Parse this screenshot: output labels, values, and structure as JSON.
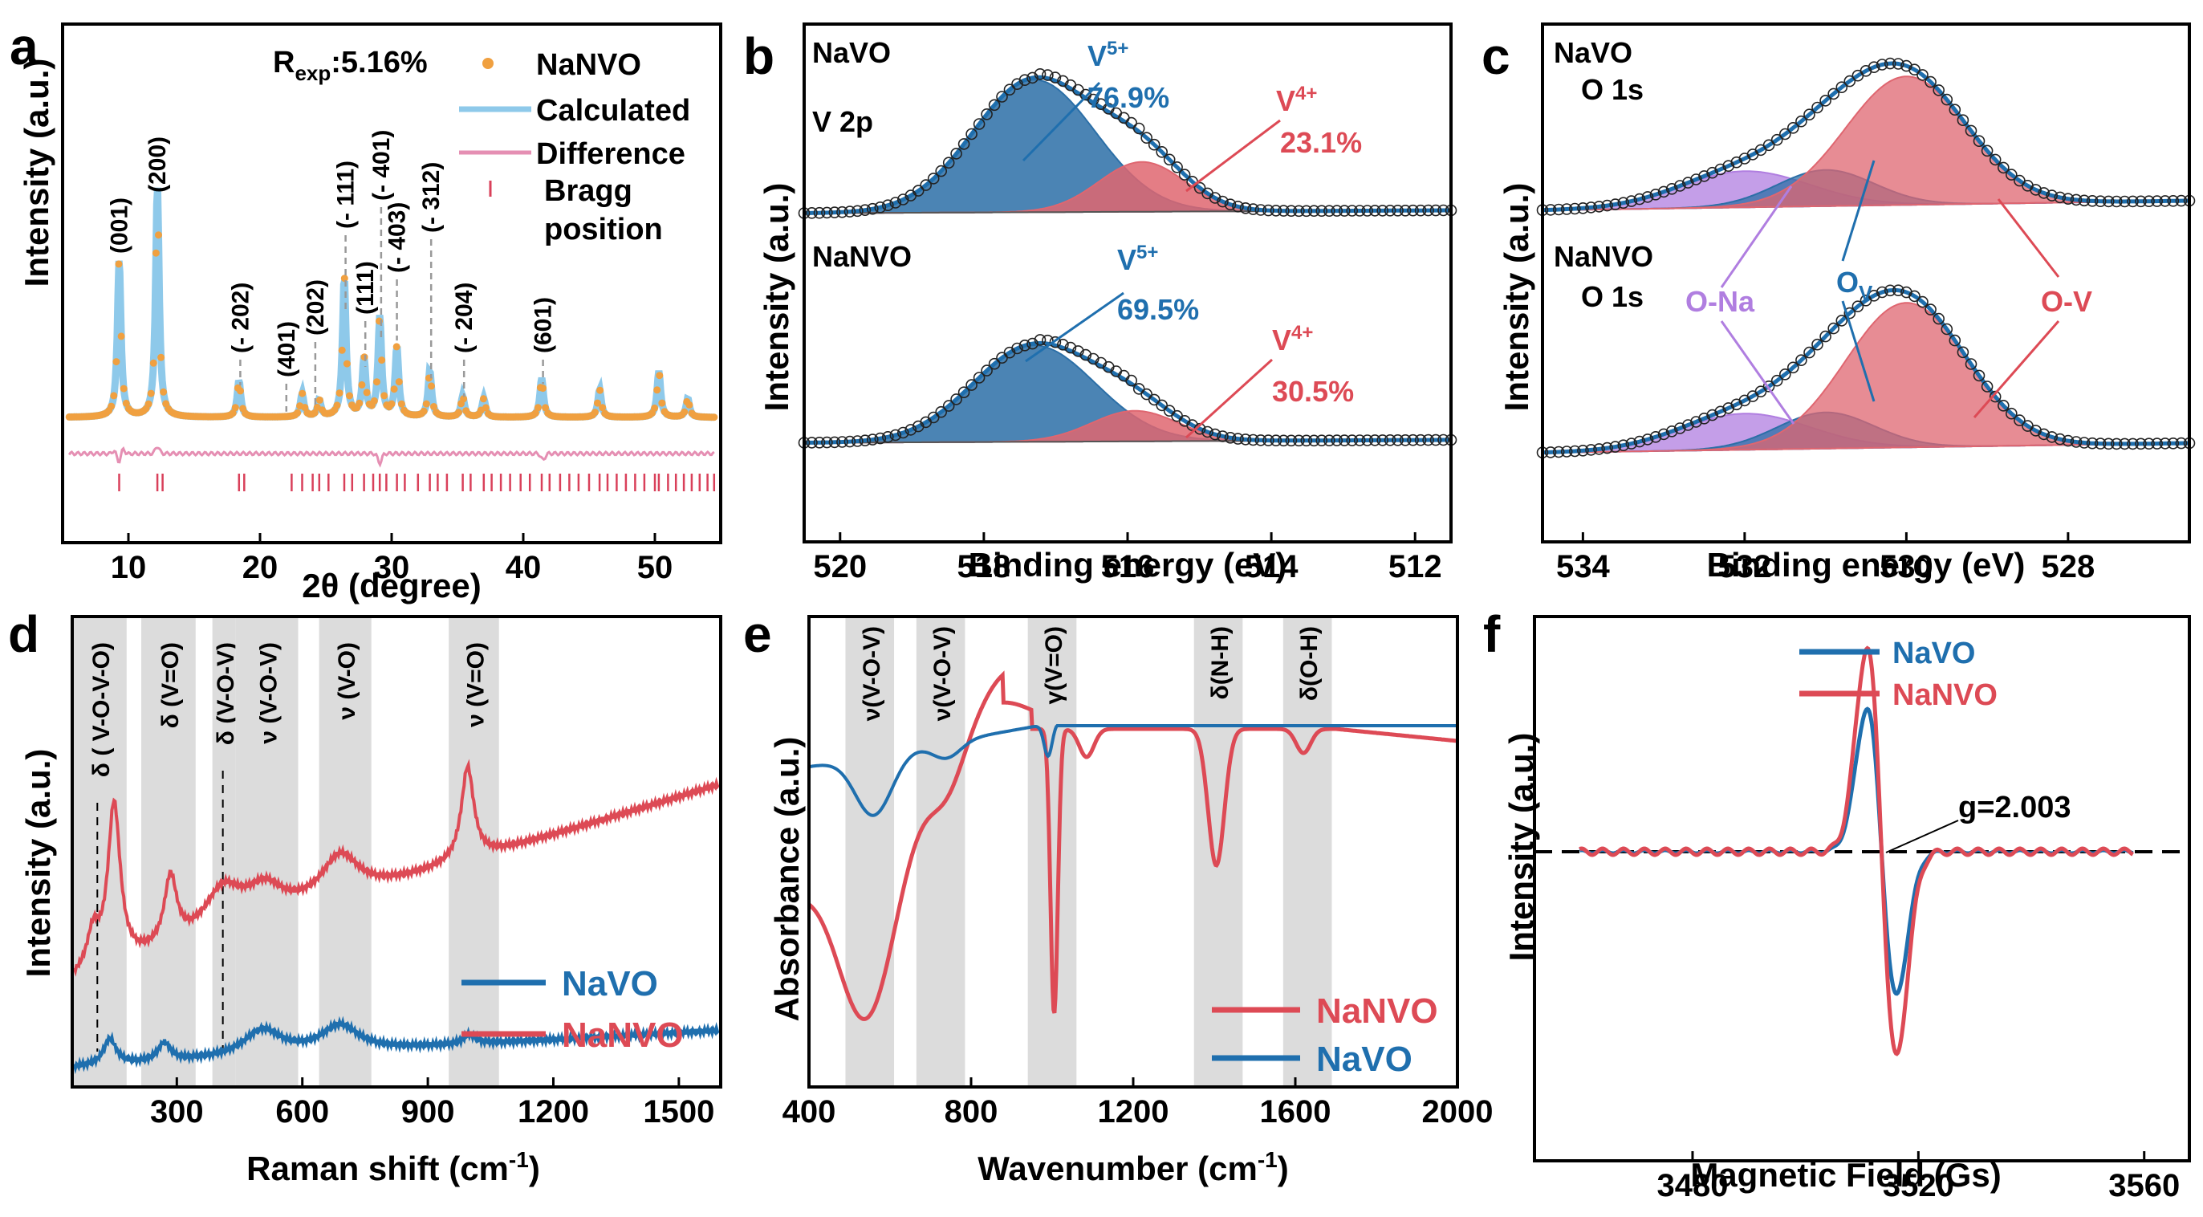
{
  "colors": {
    "orange": "#f0a040",
    "calc_blue": "#8ec9ea",
    "pink": "#e58fb3",
    "bragg": "#d9405a",
    "blue": "#1f6fae",
    "red": "#dd4a55",
    "purple": "#b07ee0",
    "fill_blue": "#2c6fa7",
    "fill_red": "#df6670",
    "shade": "#dcdcdc"
  },
  "chart_data": [
    {
      "panel": "a",
      "type": "line",
      "title": "",
      "xlabel": "2θ (degree)",
      "ylabel": "Intensity (a.u.)",
      "xlim": [
        5,
        55
      ],
      "xticks": [
        10,
        20,
        30,
        40,
        50
      ],
      "r_exp": "R",
      "r_exp_sub": "exp",
      "r_exp_value": ":5.16%",
      "legend": [
        "NaNVO",
        "Calculated",
        "Difference",
        "Bragg",
        "position"
      ],
      "peaks": [
        {
          "x": 9.3,
          "label": "(001)"
        },
        {
          "x": 12.2,
          "label": "(200)"
        },
        {
          "x": 18.5,
          "label": "(- 202)"
        },
        {
          "x": 22.0,
          "label": "(401)"
        },
        {
          "x": 24.2,
          "label": "(202)"
        },
        {
          "x": 26.5,
          "label": "(- 111)"
        },
        {
          "x": 28.0,
          "label": "(111)"
        },
        {
          "x": 29.2,
          "label": "(- 401)"
        },
        {
          "x": 30.4,
          "label": "(- 403)"
        },
        {
          "x": 33.0,
          "label": "(- 312)"
        },
        {
          "x": 35.5,
          "label": "(- 204)"
        },
        {
          "x": 41.5,
          "label": "(601)"
        }
      ],
      "pattern_peaks": [
        {
          "x": 9.3,
          "h": 0.68
        },
        {
          "x": 12.2,
          "h": 1.0
        },
        {
          "x": 18.4,
          "h": 0.16
        },
        {
          "x": 23.2,
          "h": 0.1
        },
        {
          "x": 24.5,
          "h": 0.07
        },
        {
          "x": 26.4,
          "h": 0.6
        },
        {
          "x": 27.9,
          "h": 0.25
        },
        {
          "x": 29.1,
          "h": 0.43
        },
        {
          "x": 30.4,
          "h": 0.3
        },
        {
          "x": 32.9,
          "h": 0.2
        },
        {
          "x": 35.4,
          "h": 0.09
        },
        {
          "x": 37.0,
          "h": 0.08
        },
        {
          "x": 41.4,
          "h": 0.17
        },
        {
          "x": 45.8,
          "h": 0.12
        },
        {
          "x": 50.3,
          "h": 0.2
        },
        {
          "x": 52.5,
          "h": 0.08
        }
      ]
    },
    {
      "panel": "b",
      "type": "line",
      "xlabel": "Binding energy (eV)",
      "ylabel": "Intensity (a.u.)",
      "xlim": [
        520.5,
        511.5
      ],
      "xticks": [
        520,
        518,
        516,
        514,
        512
      ],
      "series": [
        {
          "name": "NaVO",
          "line2": "V 2p",
          "v5_label": "V",
          "v5_sup": "5+",
          "v5_pct": "76.9%",
          "v4_label": "V",
          "v4_sup": "4+",
          "v4_pct": "23.1%",
          "v5_center": 517.3,
          "v4_center": 515.8
        },
        {
          "name": "NaNVO",
          "v5_label": "V",
          "v5_sup": "5+",
          "v5_pct": "69.5%",
          "v4_label": "V",
          "v4_sup": "4+",
          "v4_pct": "30.5%",
          "v5_center": 517.3,
          "v4_center": 515.9
        }
      ]
    },
    {
      "panel": "c",
      "type": "line",
      "xlabel": "Binding energy (eV)",
      "ylabel": "Intensity (a.u.)",
      "xlim": [
        534.5,
        526.5
      ],
      "xticks": [
        534,
        532,
        530,
        528
      ],
      "series": [
        {
          "name": "NaVO",
          "line2": "O 1s"
        },
        {
          "name": "NaNVO",
          "line2": "O 1s"
        }
      ],
      "components": [
        {
          "label": "O-Na",
          "center": 532.0
        },
        {
          "label": "O",
          "sub": "V",
          "center": 531.0
        },
        {
          "label": "O-V",
          "center": 530.0
        }
      ]
    },
    {
      "panel": "d",
      "type": "line",
      "xlabel": "Raman shift (cm",
      "xlabel_sup": "-1",
      "xlabel_end": ")",
      "ylabel": "Intensity (a.u.)",
      "xlim": [
        50,
        1600
      ],
      "xticks": [
        300,
        600,
        900,
        1200,
        1500
      ],
      "bands": [
        {
          "range": [
            50,
            180
          ],
          "label": "δ ( V-O-V-O)"
        },
        {
          "range": [
            215,
            345
          ],
          "label": "δ (V=O)"
        },
        {
          "range": [
            385,
            440
          ],
          "label": "δ (V-O-V)"
        },
        {
          "range": [
            440,
            590
          ],
          "label": "ν (V-O-V)"
        },
        {
          "range": [
            640,
            765
          ],
          "label": "ν (V-O)"
        },
        {
          "range": [
            950,
            1070
          ],
          "label": "ν (V=O)"
        }
      ],
      "series": [
        {
          "name": "NaVO",
          "peaks": [
            [
              140,
              0.5
            ],
            [
              270,
              0.35
            ],
            [
              505,
              0.5
            ],
            [
              690,
              0.5
            ],
            [
              1000,
              0.18
            ]
          ]
        },
        {
          "name": "NaNVO",
          "peaks": [
            [
              100,
              0.3
            ],
            [
              150,
              1.3
            ],
            [
              285,
              0.55
            ],
            [
              410,
              0.35
            ],
            [
              510,
              0.25
            ],
            [
              690,
              0.35
            ],
            [
              995,
              0.75
            ]
          ]
        }
      ]
    },
    {
      "panel": "e",
      "type": "line",
      "xlabel": "Wavenumber (cm",
      "xlabel_sup": "-1",
      "xlabel_end": ")",
      "ylabel": "Absorbance (a.u.)",
      "xlim": [
        400,
        2000
      ],
      "xticks": [
        400,
        800,
        1200,
        1600,
        2000
      ],
      "bands": [
        {
          "range": [
            490,
            610
          ],
          "label": "ν(V-O-V)"
        },
        {
          "range": [
            665,
            785
          ],
          "label": "ν(V-O-V)"
        },
        {
          "range": [
            940,
            1060
          ],
          "label": "γ(V=O)"
        },
        {
          "range": [
            1350,
            1470
          ],
          "label": "δ(N-H)"
        },
        {
          "range": [
            1570,
            1690
          ],
          "label": "δ(O-H)"
        }
      ],
      "series": [
        {
          "name": "NaNVO"
        },
        {
          "name": "NaVO"
        }
      ]
    },
    {
      "panel": "f",
      "type": "line",
      "xlabel": "Magnetic Field (Gs)",
      "ylabel": "Intensity (a.u.)",
      "xlim": [
        3452,
        3568
      ],
      "xticks": [
        3480,
        3520,
        3560
      ],
      "annotation": "g=2.003",
      "series": [
        {
          "name": "NaVO",
          "amplitude": 0.7
        },
        {
          "name": "NaNVO",
          "amplitude": 1.0
        }
      ]
    }
  ]
}
